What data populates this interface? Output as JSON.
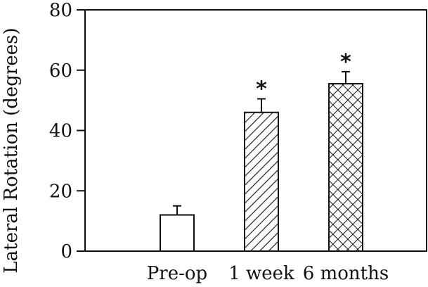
{
  "chart_data": {
    "type": "bar",
    "title": "",
    "xlabel": "",
    "ylabel": "Lateral Rotation  (degrees)",
    "ylim": [
      0,
      80
    ],
    "yticks": [
      0,
      20,
      40,
      60,
      80
    ],
    "ytick_labels": [
      "0",
      "20",
      "40",
      "60",
      "80"
    ],
    "grid": false,
    "categories": [
      "Pre-op",
      "1 week",
      "6 months"
    ],
    "values": [
      12,
      46,
      55.5
    ],
    "error_upper": [
      3,
      4.5,
      4
    ],
    "significance": [
      "",
      "*",
      "*"
    ],
    "fills": [
      "solid-white",
      "diagonal-hatch",
      "cross-hatch"
    ],
    "colors": {
      "bar_stroke": "#111111",
      "bar_fill": "#ffffff",
      "axis": "#111111"
    }
  }
}
